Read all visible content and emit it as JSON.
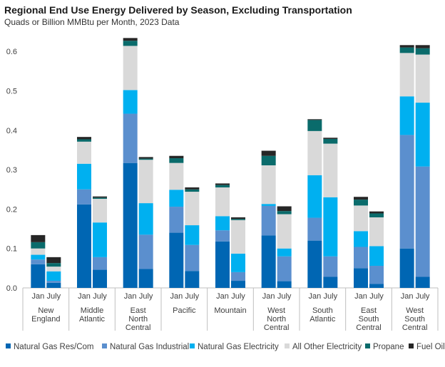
{
  "chart_data": {
    "type": "bar",
    "stacked": true,
    "title": "Regional End Use Energy Delivered by Season, Excluding Transportation",
    "subtitle": "Quads or Billion MMBtu per Month, 2023 Data",
    "ylim": [
      0,
      0.65
    ],
    "yticks": [
      "0.0",
      "0.1",
      "0.2",
      "0.3",
      "0.4",
      "0.5",
      "0.6"
    ],
    "grid": false,
    "legend_position": "bottom",
    "regions": [
      {
        "label_lines": [
          "New",
          "England"
        ]
      },
      {
        "label_lines": [
          "Middle",
          "Atlantic"
        ]
      },
      {
        "label_lines": [
          "East",
          "North",
          "Central"
        ]
      },
      {
        "label_lines": [
          "Pacific"
        ]
      },
      {
        "label_lines": [
          "Mountain"
        ]
      },
      {
        "label_lines": [
          "West",
          "North",
          "Central"
        ]
      },
      {
        "label_lines": [
          "South",
          "Atlantic"
        ]
      },
      {
        "label_lines": [
          "East",
          "South",
          "Central"
        ]
      },
      {
        "label_lines": [
          "West",
          "South",
          "Central"
        ]
      }
    ],
    "months": [
      "Jan",
      "July"
    ],
    "series": [
      {
        "name": "Natural Gas Res/Com",
        "color": "#0066b3",
        "values": [
          [
            0.06,
            0.013
          ],
          [
            0.212,
            0.046
          ],
          [
            0.317,
            0.048
          ],
          [
            0.14,
            0.043
          ],
          [
            0.118,
            0.018
          ],
          [
            0.133,
            0.017
          ],
          [
            0.12,
            0.028
          ],
          [
            0.05,
            0.01
          ],
          [
            0.1,
            0.028
          ]
        ]
      },
      {
        "name": "Natural Gas Industrial",
        "color": "#5b8fce",
        "values": [
          [
            0.012,
            0.005
          ],
          [
            0.038,
            0.032
          ],
          [
            0.125,
            0.087
          ],
          [
            0.066,
            0.066
          ],
          [
            0.028,
            0.022
          ],
          [
            0.075,
            0.063
          ],
          [
            0.058,
            0.052
          ],
          [
            0.054,
            0.046
          ],
          [
            0.288,
            0.28
          ]
        ]
      },
      {
        "name": "Natural Gas Electricity",
        "color": "#00b0f0",
        "values": [
          [
            0.012,
            0.024
          ],
          [
            0.065,
            0.088
          ],
          [
            0.06,
            0.08
          ],
          [
            0.043,
            0.05
          ],
          [
            0.036,
            0.047
          ],
          [
            0.005,
            0.02
          ],
          [
            0.108,
            0.15
          ],
          [
            0.04,
            0.05
          ],
          [
            0.098,
            0.162
          ]
        ]
      },
      {
        "name": "All Other Electricity",
        "color": "#d9d9d9",
        "values": [
          [
            0.016,
            0.012
          ],
          [
            0.056,
            0.06
          ],
          [
            0.112,
            0.11
          ],
          [
            0.068,
            0.085
          ],
          [
            0.073,
            0.085
          ],
          [
            0.098,
            0.087
          ],
          [
            0.112,
            0.136
          ],
          [
            0.065,
            0.073
          ],
          [
            0.11,
            0.122
          ]
        ]
      },
      {
        "name": "Propane",
        "color": "#0a6b6b",
        "values": [
          [
            0.016,
            0.009
          ],
          [
            0.006,
            0.003
          ],
          [
            0.013,
            0.003
          ],
          [
            0.012,
            0.006
          ],
          [
            0.006,
            0.003
          ],
          [
            0.024,
            0.008
          ],
          [
            0.028,
            0.012
          ],
          [
            0.015,
            0.01
          ],
          [
            0.014,
            0.016
          ]
        ]
      },
      {
        "name": "Fuel Oil",
        "color": "#262626",
        "values": [
          [
            0.018,
            0.015
          ],
          [
            0.006,
            0.003
          ],
          [
            0.007,
            0.004
          ],
          [
            0.006,
            0.005
          ],
          [
            0.004,
            0.004
          ],
          [
            0.013,
            0.012
          ],
          [
            0.002,
            0.003
          ],
          [
            0.007,
            0.005
          ],
          [
            0.006,
            0.008
          ]
        ]
      }
    ]
  }
}
